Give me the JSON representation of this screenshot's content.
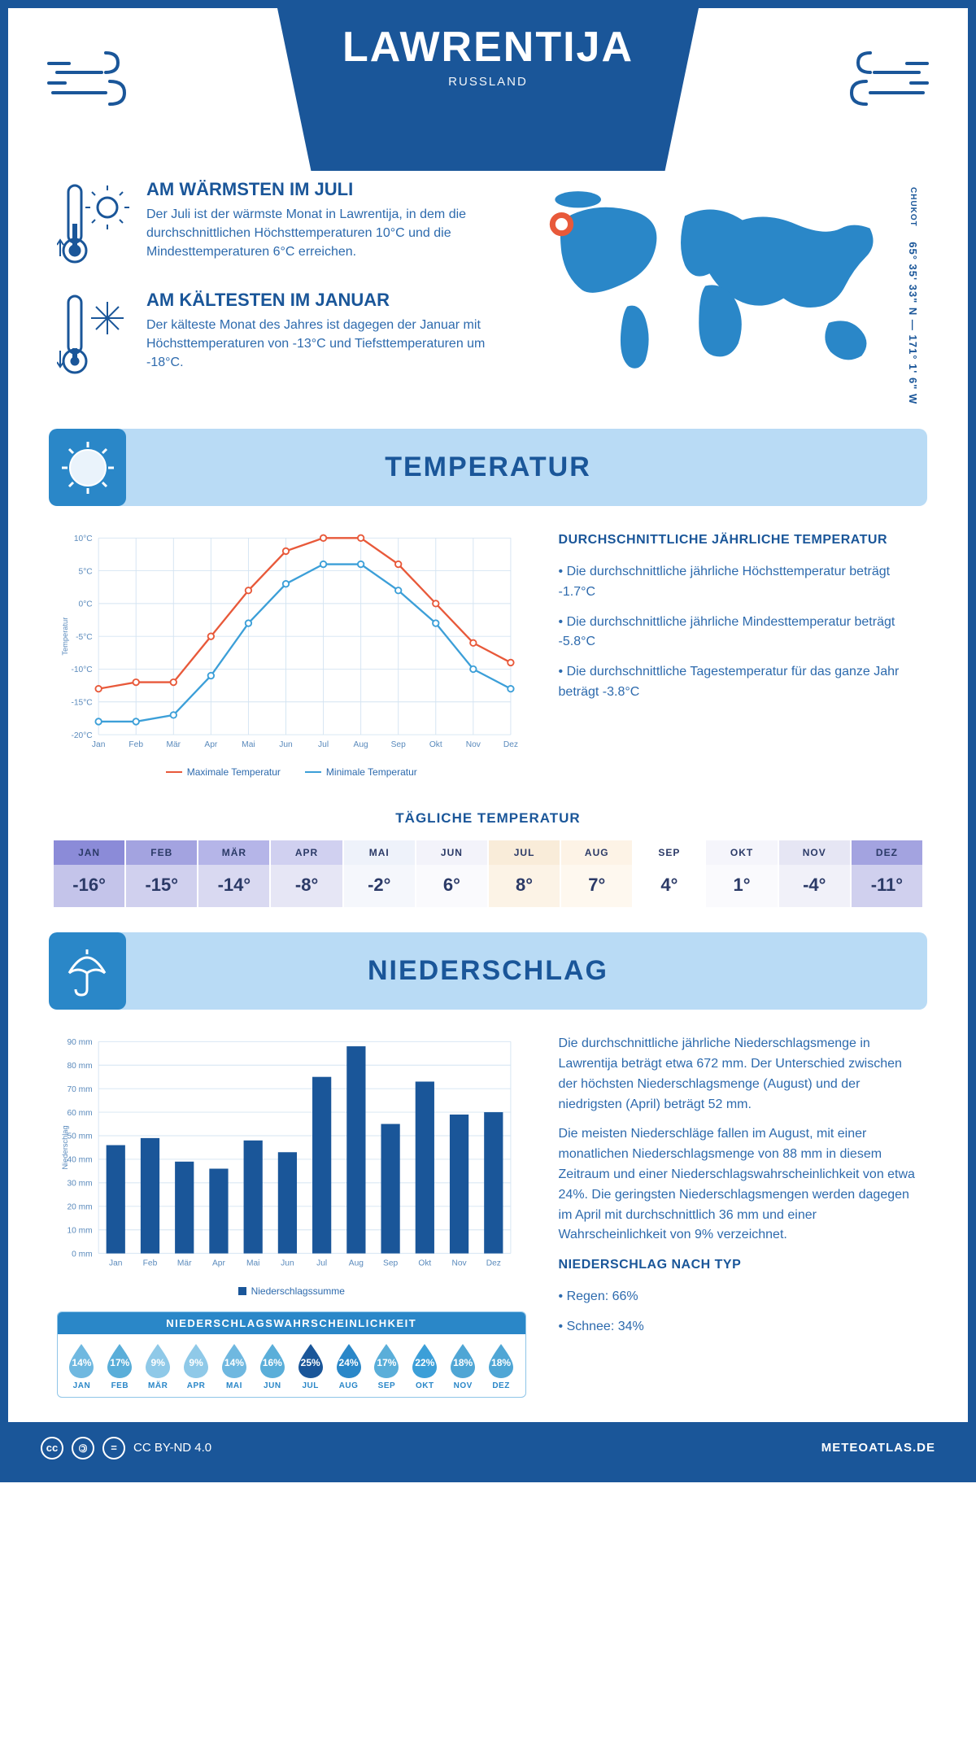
{
  "header": {
    "city": "LAWRENTIJA",
    "country": "RUSSLAND"
  },
  "coords": {
    "lat": "65° 35' 33\" N",
    "lon": "171° 1' 6\" W",
    "region": "CHUKOT"
  },
  "facts": {
    "warm": {
      "title": "AM WÄRMSTEN IM JULI",
      "text": "Der Juli ist der wärmste Monat in Lawrentija, in dem die durchschnittlichen Höchsttemperaturen 10°C und die Mindesttemperaturen 6°C erreichen."
    },
    "cold": {
      "title": "AM KÄLTESTEN IM JANUAR",
      "text": "Der kälteste Monat des Jahres ist dagegen der Januar mit Höchsttemperaturen von -13°C und Tiefsttemperaturen um -18°C."
    }
  },
  "sections": {
    "temp": "TEMPERATUR",
    "precip": "NIEDERSCHLAG"
  },
  "temp_chart": {
    "months": [
      "Jan",
      "Feb",
      "Mär",
      "Apr",
      "Mai",
      "Jun",
      "Jul",
      "Aug",
      "Sep",
      "Okt",
      "Nov",
      "Dez"
    ],
    "max": [
      -13,
      -12,
      -12,
      -5,
      2,
      8,
      10,
      10,
      6,
      0,
      -6,
      -9
    ],
    "min": [
      -18,
      -18,
      -17,
      -11,
      -3,
      3,
      6,
      6,
      2,
      -3,
      -10,
      -13
    ],
    "ylim": [
      -20,
      10
    ],
    "ytick": 5,
    "color_max": "#e8593a",
    "color_min": "#3c9fd8",
    "grid": "#d4e4f2",
    "bg": "#ffffff",
    "ylabel": "Temperatur",
    "legend_max": "Maximale Temperatur",
    "legend_min": "Minimale Temperatur"
  },
  "temp_info": {
    "title": "DURCHSCHNITTLICHE JÄHRLICHE TEMPERATUR",
    "b1": "• Die durchschnittliche jährliche Höchsttemperatur beträgt -1.7°C",
    "b2": "• Die durchschnittliche jährliche Mindesttemperatur beträgt -5.8°C",
    "b3": "• Die durchschnittliche Tagestemperatur für das ganze Jahr beträgt -3.8°C"
  },
  "daily_temp": {
    "title": "TÄGLICHE TEMPERATUR",
    "months": [
      "JAN",
      "FEB",
      "MÄR",
      "APR",
      "MAI",
      "JUN",
      "JUL",
      "AUG",
      "SEP",
      "OKT",
      "NOV",
      "DEZ"
    ],
    "values": [
      "-16°",
      "-15°",
      "-14°",
      "-8°",
      "-2°",
      "6°",
      "8°",
      "7°",
      "4°",
      "1°",
      "-4°",
      "-11°"
    ],
    "head_bg": [
      "#8b8bd8",
      "#a3a3e0",
      "#b5b5e8",
      "#d0d0f0",
      "#eef2fa",
      "#f3f3fa",
      "#f9ecd9",
      "#fdf3e6",
      "#ffffff",
      "#f5f5fb",
      "#e6e6f4",
      "#a3a3e0"
    ],
    "cell_bg": [
      "#c4c4ea",
      "#d0d0ee",
      "#d9d9f1",
      "#e6e6f5",
      "#f5f7fc",
      "#fafafd",
      "#fcf3e6",
      "#fef8ef",
      "#ffffff",
      "#fafafd",
      "#f1f1f9",
      "#d0d0ee"
    ],
    "text": "#2b3a67"
  },
  "precip_chart": {
    "months": [
      "Jan",
      "Feb",
      "Mär",
      "Apr",
      "Mai",
      "Jun",
      "Jul",
      "Aug",
      "Sep",
      "Okt",
      "Nov",
      "Dez"
    ],
    "values": [
      46,
      49,
      39,
      36,
      48,
      43,
      75,
      88,
      55,
      73,
      59,
      60
    ],
    "ylim": [
      0,
      90
    ],
    "ytick": 10,
    "bar_color": "#1a5699",
    "grid": "#d4e4f2",
    "ylabel": "Niederschlag",
    "legend": "Niederschlagssumme"
  },
  "precip_info": {
    "p1": "Die durchschnittliche jährliche Niederschlagsmenge in Lawrentija beträgt etwa 672 mm. Der Unterschied zwischen der höchsten Niederschlagsmenge (August) und der niedrigsten (April) beträgt 52 mm.",
    "p2": "Die meisten Niederschläge fallen im August, mit einer monatlichen Niederschlagsmenge von 88 mm in diesem Zeitraum und einer Niederschlagswahrscheinlichkeit von etwa 24%. Die geringsten Niederschlagsmengen werden dagegen im April mit durchschnittlich 36 mm und einer Wahrscheinlichkeit von 9% verzeichnet.",
    "type_title": "NIEDERSCHLAG NACH TYP",
    "rain": "• Regen: 66%",
    "snow": "• Schnee: 34%"
  },
  "prob": {
    "title": "NIEDERSCHLAGSWAHRSCHEINLICHKEIT",
    "months": [
      "JAN",
      "FEB",
      "MÄR",
      "APR",
      "MAI",
      "JUN",
      "JUL",
      "AUG",
      "SEP",
      "OKT",
      "NOV",
      "DEZ"
    ],
    "pct": [
      "14%",
      "17%",
      "9%",
      "9%",
      "14%",
      "16%",
      "25%",
      "24%",
      "17%",
      "22%",
      "18%",
      "18%"
    ],
    "colors": [
      "#6fb8e0",
      "#5aaed9",
      "#8fc9e8",
      "#8fc9e8",
      "#6fb8e0",
      "#5aaed9",
      "#1a5699",
      "#2a87c8",
      "#5aaed9",
      "#3c9fd8",
      "#4fa6d5",
      "#4fa6d5"
    ]
  },
  "footer": {
    "license": "CC BY-ND 4.0",
    "site": "METEOATLAS.DE"
  }
}
